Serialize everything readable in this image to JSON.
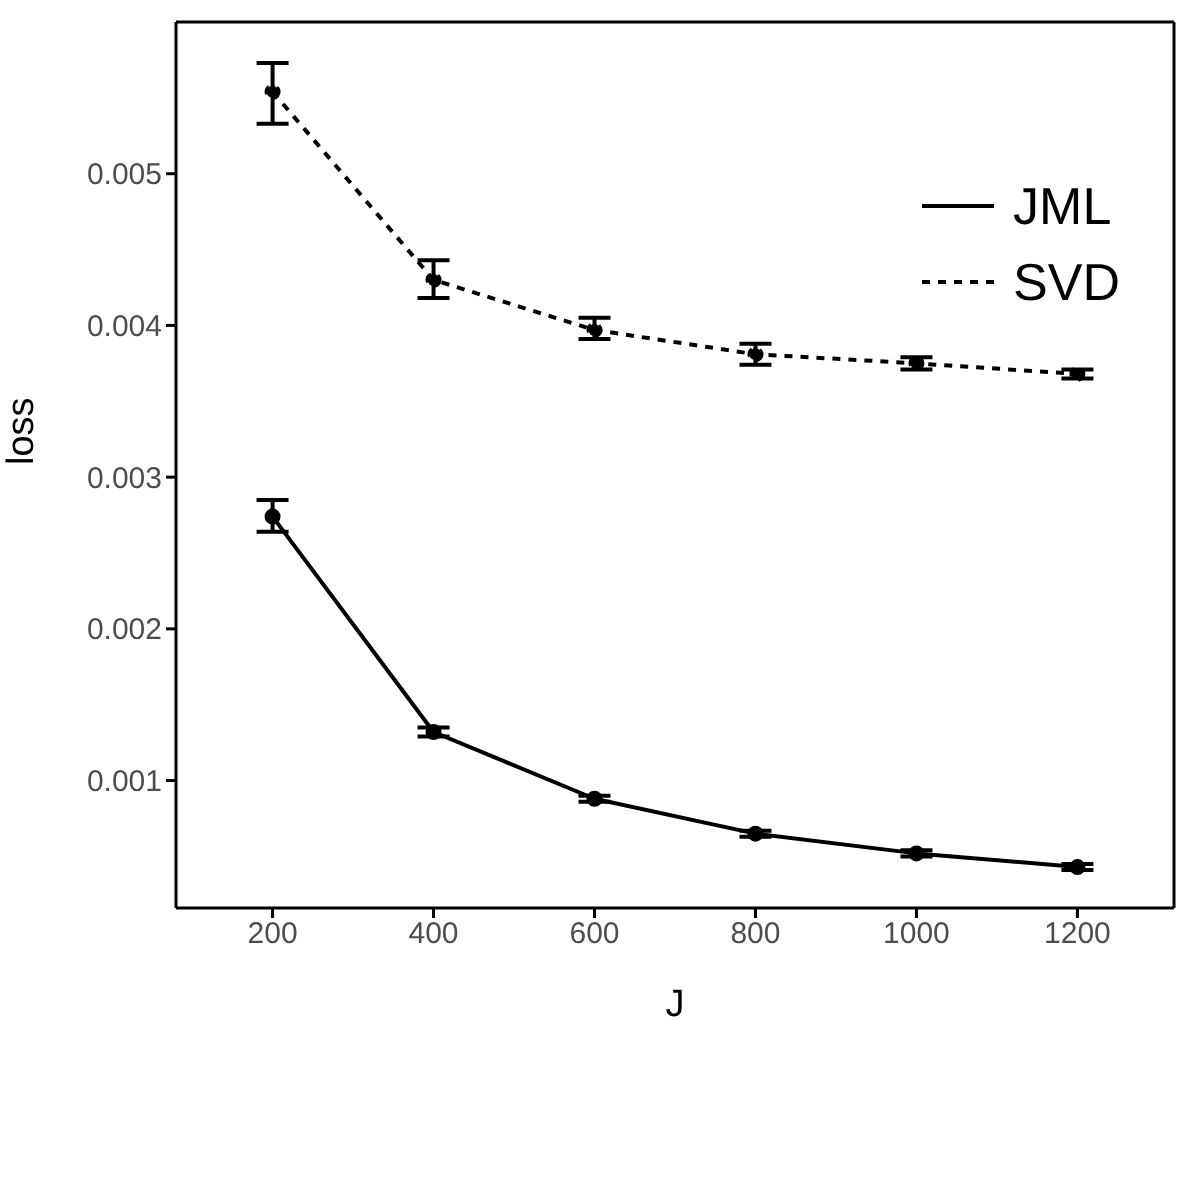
{
  "chart_data": {
    "type": "line",
    "xlabel": "J",
    "ylabel": "loss",
    "x": [
      200,
      400,
      600,
      800,
      1000,
      1200
    ],
    "series": [
      {
        "name": "JML",
        "color": "#000000",
        "line_style": "solid",
        "values": [
          0.00274,
          0.00132,
          0.00088,
          0.00065,
          0.00052,
          0.00043
        ],
        "errors": [
          [
            0.00264,
            0.00285
          ],
          [
            0.00129,
            0.00135
          ],
          [
            0.00086,
            0.0009
          ],
          [
            0.00063,
            0.00067
          ],
          [
            0.0005,
            0.00054
          ],
          [
            0.00041,
            0.00045
          ]
        ]
      },
      {
        "name": "SVD",
        "color": "#000000",
        "line_style": "dashed",
        "values": [
          0.00554,
          0.0043,
          0.00397,
          0.00381,
          0.00375,
          0.00368
        ],
        "errors": [
          [
            0.00533,
            0.00573
          ],
          [
            0.00418,
            0.00443
          ],
          [
            0.00391,
            0.00405
          ],
          [
            0.00374,
            0.00388
          ],
          [
            0.00371,
            0.00379
          ],
          [
            0.00365,
            0.00371
          ]
        ]
      }
    ],
    "xlim": [
      80,
      1320
    ],
    "xticks": [
      200,
      400,
      600,
      800,
      1000,
      1200
    ],
    "ylim": [
      0.00016,
      0.006
    ],
    "yticks": [
      0.001,
      0.002,
      0.003,
      0.004,
      0.005
    ],
    "marker": "circle",
    "legend": "top right"
  }
}
